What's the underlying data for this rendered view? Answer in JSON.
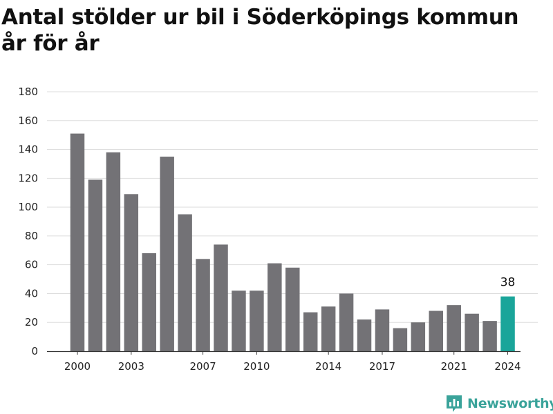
{
  "chart_data": {
    "type": "bar",
    "title": "Antal stölder ur bil i Söderköpings kommun år för år",
    "xlabel": "",
    "ylabel": "",
    "categories": [
      "2000",
      "2001",
      "2002",
      "2003",
      "2004",
      "2005",
      "2006",
      "2007",
      "2008",
      "2009",
      "2010",
      "2011",
      "2012",
      "2013",
      "2014",
      "2015",
      "2016",
      "2017",
      "2018",
      "2019",
      "2020",
      "2021",
      "2022",
      "2023",
      "2024"
    ],
    "values": [
      151,
      119,
      138,
      109,
      68,
      135,
      95,
      64,
      74,
      42,
      42,
      61,
      58,
      27,
      31,
      40,
      22,
      29,
      16,
      20,
      28,
      32,
      26,
      21,
      38
    ],
    "x_tick_labels": [
      "2000",
      "2003",
      "2007",
      "2010",
      "2014",
      "2017",
      "2021",
      "2024"
    ],
    "y_ticks": [
      0,
      20,
      40,
      60,
      80,
      100,
      120,
      140,
      160,
      180
    ],
    "ylim": [
      0,
      180
    ],
    "grid": true,
    "legend": "none",
    "highlight": {
      "category": "2024",
      "label": "38"
    },
    "colors": {
      "bar": "#737276",
      "highlight": "#1aa59a",
      "grid": "#dddddd",
      "axis": "#333333"
    }
  },
  "brand": {
    "name": "Newsworthy",
    "icon": "chart-logo-icon",
    "color": "#3aa39a"
  }
}
